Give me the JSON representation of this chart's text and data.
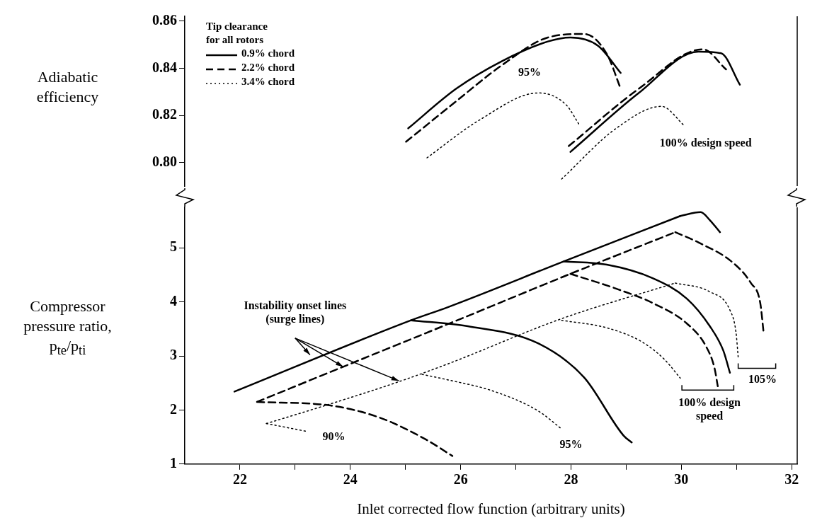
{
  "chart_data": [
    {
      "type": "line",
      "ylabel": "Adiabatic efficiency",
      "legend_title": "Tip clearance\nfor all rotors",
      "legend": "top left",
      "grid": false,
      "marker": "none",
      "tick_labels": "y",
      "xlim": [
        21,
        32.1
      ],
      "ylim": [
        0.79,
        0.862
      ],
      "yticks": [
        {
          "value": 0.8,
          "label": "0.80"
        },
        {
          "value": 0.82,
          "label": "0.82"
        },
        {
          "value": 0.84,
          "label": "0.84"
        },
        {
          "value": 0.86,
          "label": "0.86"
        }
      ],
      "series": [
        {
          "name": "0.9% chord",
          "color": "#000000",
          "line_style": "solid",
          "x": [
            25.05,
            25.92,
            26.75,
            27.58,
            27.99,
            28.49,
            28.9
          ],
          "values": [
            0.8145,
            0.8313,
            0.843,
            0.8513,
            0.853,
            0.8495,
            0.838
          ]
        },
        {
          "name": "2.2% chord",
          "color": "#000000",
          "line_style": "dashed",
          "x": [
            25.01,
            25.92,
            26.75,
            27.58,
            28.24,
            28.65,
            28.9
          ],
          "values": [
            0.8088,
            0.826,
            0.8413,
            0.853,
            0.8545,
            0.846,
            0.8313
          ]
        },
        {
          "name": "3.4% chord",
          "color": "#000000",
          "line_style": "dotted",
          "x": [
            25.39,
            26.34,
            27.41,
            27.91,
            28.15
          ],
          "values": [
            0.802,
            0.818,
            0.8295,
            0.8245,
            0.816
          ]
        },
        {
          "color": "#000000",
          "line_style": "solid",
          "x": [
            27.99,
            29.23,
            30.31,
            30.72,
            31.06
          ],
          "values": [
            0.8045,
            0.8295,
            0.847,
            0.8463,
            0.833
          ]
        },
        {
          "color": "#000000",
          "line_style": "dashed",
          "x": [
            27.96,
            29.23,
            30.39,
            30.81
          ],
          "values": [
            0.807,
            0.8313,
            0.848,
            0.8395
          ]
        },
        {
          "color": "#000000",
          "line_style": "dotted",
          "x": [
            27.83,
            28.82,
            29.64,
            30.06
          ],
          "values": [
            0.793,
            0.8145,
            0.8238,
            0.8155
          ]
        }
      ],
      "annotations": [
        "95%",
        "100% design speed"
      ]
    },
    {
      "type": "line",
      "xlabel": "Inlet corrected flow function (arbitrary units)",
      "ylabel": "Compressor pressure ratio, p$_{te}$/p$_{ti}$",
      "grid": false,
      "marker": "none",
      "xlim": [
        21,
        32.1
      ],
      "ylim": [
        1,
        5.75
      ],
      "xticks": [
        22,
        {
          "value": 23,
          "label": null
        },
        24,
        {
          "value": 25,
          "label": null
        },
        26,
        {
          "value": 27,
          "label": null
        },
        28,
        {
          "value": 29,
          "label": null
        },
        30,
        {
          "value": 31,
          "label": null
        },
        32
      ],
      "yticks": [
        1,
        2,
        3,
        4,
        5
      ],
      "series": [
        {
          "color": "#000000",
          "line_style": "solid",
          "x": [
            21.9,
            25.1,
            25.76,
            27.87,
            29.98
          ],
          "values": [
            2.34,
            3.66,
            3.9,
            4.75,
            5.59
          ]
        },
        {
          "color": "#000000",
          "line_style": "solid",
          "x": [
            25.1,
            26.13,
            27.41,
            28.24,
            28.95,
            29.1
          ],
          "values": [
            3.66,
            3.55,
            3.23,
            2.6,
            1.53,
            1.4
          ]
        },
        {
          "color": "#000000",
          "line_style": "solid",
          "x": [
            27.87,
            28.65,
            29.48,
            30.1,
            30.51,
            30.76,
            30.88
          ],
          "values": [
            4.75,
            4.69,
            4.44,
            4.06,
            3.56,
            3.1,
            2.69
          ]
        },
        {
          "color": "#000000",
          "line_style": "solid",
          "x": [
            29.98,
            30.35,
            30.51,
            30.7
          ],
          "values": [
            5.59,
            5.66,
            5.52,
            5.29
          ]
        },
        {
          "color": "#000000",
          "line_style": "dashed",
          "x": [
            22.31,
            23.87,
            26.01,
            27.99,
            29.89
          ],
          "values": [
            2.15,
            2.8,
            3.69,
            4.52,
            5.29
          ]
        },
        {
          "color": "#000000",
          "line_style": "dashed",
          "x": [
            22.31,
            23.66,
            24.53,
            25.36,
            25.85
          ],
          "values": [
            2.15,
            2.08,
            1.86,
            1.46,
            1.15
          ]
        },
        {
          "color": "#000000",
          "line_style": "dashed",
          "x": [
            27.99,
            28.86,
            29.48,
            30.1,
            30.44,
            30.6,
            30.66
          ],
          "values": [
            4.52,
            4.23,
            3.98,
            3.6,
            3.19,
            2.78,
            2.44
          ]
        },
        {
          "color": "#000000",
          "line_style": "dashed",
          "x": [
            29.89,
            30.31,
            30.93,
            31.26,
            31.43,
            31.49
          ],
          "values": [
            5.29,
            5.1,
            4.73,
            4.35,
            3.98,
            3.44
          ]
        },
        {
          "color": "#000000",
          "line_style": "dotted",
          "x": [
            22.48,
            23.66,
            24.84,
            25.76,
            27.83,
            29.89
          ],
          "values": [
            1.75,
            2.12,
            2.51,
            2.85,
            3.69,
            4.35
          ]
        },
        {
          "color": "#000000",
          "line_style": "dotted",
          "x": [
            22.48,
            23.23
          ],
          "values": [
            1.75,
            1.6
          ]
        },
        {
          "color": "#000000",
          "line_style": "dotted",
          "x": [
            25.3,
            25.76,
            26.59,
            27.41,
            27.83
          ],
          "values": [
            2.66,
            2.56,
            2.35,
            1.98,
            1.65
          ]
        },
        {
          "color": "#000000",
          "line_style": "dotted",
          "x": [
            27.83,
            28.65,
            29.27,
            29.69,
            29.98
          ],
          "values": [
            3.66,
            3.52,
            3.27,
            2.94,
            2.59
          ]
        },
        {
          "color": "#000000",
          "line_style": "dotted",
          "x": [
            29.89,
            30.51,
            30.88,
            30.99,
            31.03
          ],
          "values": [
            4.35,
            4.19,
            3.85,
            3.44,
            2.98
          ]
        }
      ],
      "annotations": [
        {
          "text": "Instability onset lines\n(surge lines)",
          "x": 23.87,
          "y": 2.8
        },
        "90%",
        "95%",
        "100% design\nspeed",
        "105%"
      ]
    }
  ]
}
